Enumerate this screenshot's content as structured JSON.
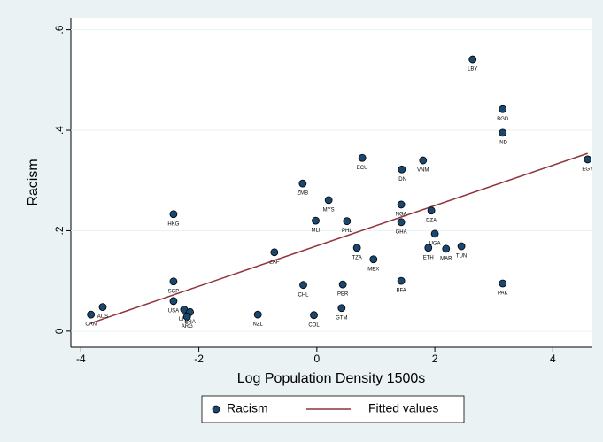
{
  "chart_data": {
    "type": "scatter",
    "xlabel": "Log Population Density 1500s",
    "ylabel": "Racism",
    "xlim": [
      -4.17,
      4.67
    ],
    "ylim": [
      -0.032,
      0.624
    ],
    "xticks": [
      -4,
      -2,
      0,
      2,
      4
    ],
    "yticks": [
      {
        "value": 0,
        "label": "0"
      },
      {
        "value": 0.2,
        "label": ".2"
      },
      {
        "value": 0.4,
        "label": ".4"
      },
      {
        "value": 0.6,
        "label": ".6"
      }
    ],
    "grid": true,
    "legend": "bottom",
    "series": [
      {
        "name": "Racism",
        "type": "scatter",
        "color": "#1a476f",
        "labels": [
          "CAN",
          "AUS",
          "HKG",
          "SGP",
          "USA",
          "URY",
          "BRA",
          "ARG",
          "NZL",
          "ZAF",
          "ZMB",
          "CHL",
          "COL",
          "MLI",
          "MYS",
          "PER",
          "GTM",
          "PHL",
          "ECU",
          "TZA",
          "MEX",
          "IDN",
          "NGA",
          "GHA",
          "BFA",
          "VNM",
          "DZA",
          "UGA",
          "ETH",
          "MAR",
          "TUN",
          "LBY",
          "BGD",
          "IND",
          "PAK",
          "EGY"
        ],
        "x": [
          -3.83,
          -3.63,
          -2.43,
          -2.43,
          -2.43,
          -2.25,
          -2.15,
          -2.2,
          -1.0,
          -0.72,
          -0.24,
          -0.23,
          -0.05,
          -0.02,
          0.2,
          0.44,
          0.42,
          0.51,
          0.77,
          0.68,
          0.96,
          1.44,
          1.43,
          1.43,
          1.43,
          1.8,
          1.94,
          2.0,
          1.89,
          2.19,
          2.45,
          2.64,
          3.15,
          3.15,
          3.15,
          4.59
        ],
        "values": [
          0.033,
          0.048,
          0.233,
          0.099,
          0.06,
          0.043,
          0.038,
          0.029,
          0.033,
          0.157,
          0.294,
          0.092,
          0.032,
          0.22,
          0.261,
          0.093,
          0.046,
          0.219,
          0.345,
          0.166,
          0.143,
          0.322,
          0.252,
          0.217,
          0.1,
          0.34,
          0.24,
          0.194,
          0.166,
          0.164,
          0.169,
          0.541,
          0.442,
          0.395,
          0.095,
          0.342
        ]
      },
      {
        "name": "Fitted values",
        "type": "line",
        "color": "#90353b",
        "x": [
          -3.83,
          4.59
        ],
        "values": [
          0.016,
          0.354
        ]
      }
    ]
  }
}
